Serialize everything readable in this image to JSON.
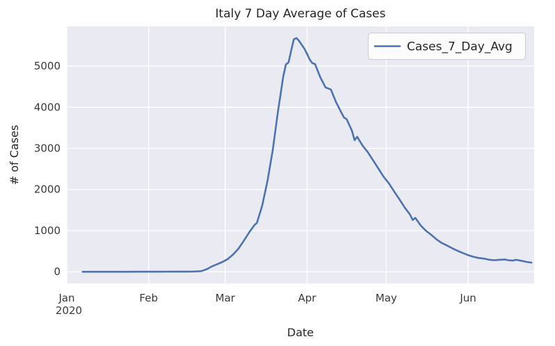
{
  "chart_data": {
    "type": "line",
    "title": "Italy 7 Day Average of Cases",
    "xlabel": "Date",
    "ylabel": "# of Cases",
    "x_tick_labels": [
      "Jan",
      "Feb",
      "Mar",
      "Apr",
      "May",
      "Jun"
    ],
    "x_tick_dates": [
      "2020-01-01",
      "2020-02-01",
      "2020-03-01",
      "2020-04-01",
      "2020-05-01",
      "2020-06-01"
    ],
    "x_tick_year_label": "2020",
    "y_ticks": [
      0,
      1000,
      2000,
      3000,
      4000,
      5000
    ],
    "xlim": [
      "2020-01-01",
      "2020-06-26"
    ],
    "ylim": [
      -284,
      5964
    ],
    "grid": true,
    "legend": {
      "position": "upper right",
      "entries": [
        "Cases_7_Day_Avg"
      ]
    },
    "colors": {
      "line": "#4c72b0",
      "plot_bg": "#eaeaf2",
      "grid": "#ffffff",
      "text": "#262626",
      "legend_bg": "#ffffff",
      "legend_border": "#cccccc"
    },
    "series": [
      {
        "name": "Cases_7_Day_Avg",
        "dates": [
          "2020-01-07",
          "2020-01-11",
          "2020-01-15",
          "2020-01-19",
          "2020-01-23",
          "2020-01-27",
          "2020-01-31",
          "2020-02-04",
          "2020-02-08",
          "2020-02-12",
          "2020-02-16",
          "2020-02-19",
          "2020-02-21",
          "2020-02-23",
          "2020-02-25",
          "2020-02-27",
          "2020-02-29",
          "2020-03-02",
          "2020-03-04",
          "2020-03-06",
          "2020-03-08",
          "2020-03-10",
          "2020-03-12",
          "2020-03-13",
          "2020-03-15",
          "2020-03-17",
          "2020-03-19",
          "2020-03-21",
          "2020-03-23",
          "2020-03-24",
          "2020-03-25",
          "2020-03-26",
          "2020-03-27",
          "2020-03-28",
          "2020-03-29",
          "2020-03-31",
          "2020-04-01",
          "2020-04-02",
          "2020-04-03",
          "2020-04-04",
          "2020-04-06",
          "2020-04-08",
          "2020-04-10",
          "2020-04-12",
          "2020-04-14",
          "2020-04-15",
          "2020-04-16",
          "2020-04-18",
          "2020-04-19",
          "2020-04-20",
          "2020-04-22",
          "2020-04-24",
          "2020-04-26",
          "2020-04-28",
          "2020-04-30",
          "2020-05-02",
          "2020-05-04",
          "2020-05-06",
          "2020-05-08",
          "2020-05-10",
          "2020-05-11",
          "2020-05-12",
          "2020-05-14",
          "2020-05-16",
          "2020-05-18",
          "2020-05-20",
          "2020-05-22",
          "2020-05-24",
          "2020-05-26",
          "2020-05-28",
          "2020-05-30",
          "2020-06-01",
          "2020-06-03",
          "2020-06-05",
          "2020-06-07",
          "2020-06-09",
          "2020-06-11",
          "2020-06-13",
          "2020-06-15",
          "2020-06-16",
          "2020-06-18",
          "2020-06-19",
          "2020-06-21",
          "2020-06-23",
          "2020-06-25"
        ],
        "values": [
          0,
          0,
          0,
          0,
          0,
          1,
          1,
          2,
          3,
          4,
          5,
          8,
          17,
          62,
          132,
          185,
          240,
          310,
          420,
          560,
          750,
          950,
          1130,
          1190,
          1600,
          2200,
          2950,
          3900,
          4750,
          5040,
          5090,
          5380,
          5650,
          5680,
          5610,
          5420,
          5295,
          5160,
          5070,
          5050,
          4730,
          4480,
          4430,
          4120,
          3870,
          3750,
          3710,
          3430,
          3200,
          3280,
          3070,
          2910,
          2710,
          2510,
          2310,
          2150,
          1950,
          1760,
          1560,
          1390,
          1260,
          1310,
          1130,
          1000,
          900,
          790,
          700,
          640,
          570,
          510,
          455,
          405,
          365,
          335,
          320,
          292,
          282,
          292,
          300,
          282,
          272,
          292,
          270,
          242,
          222
        ]
      }
    ]
  }
}
